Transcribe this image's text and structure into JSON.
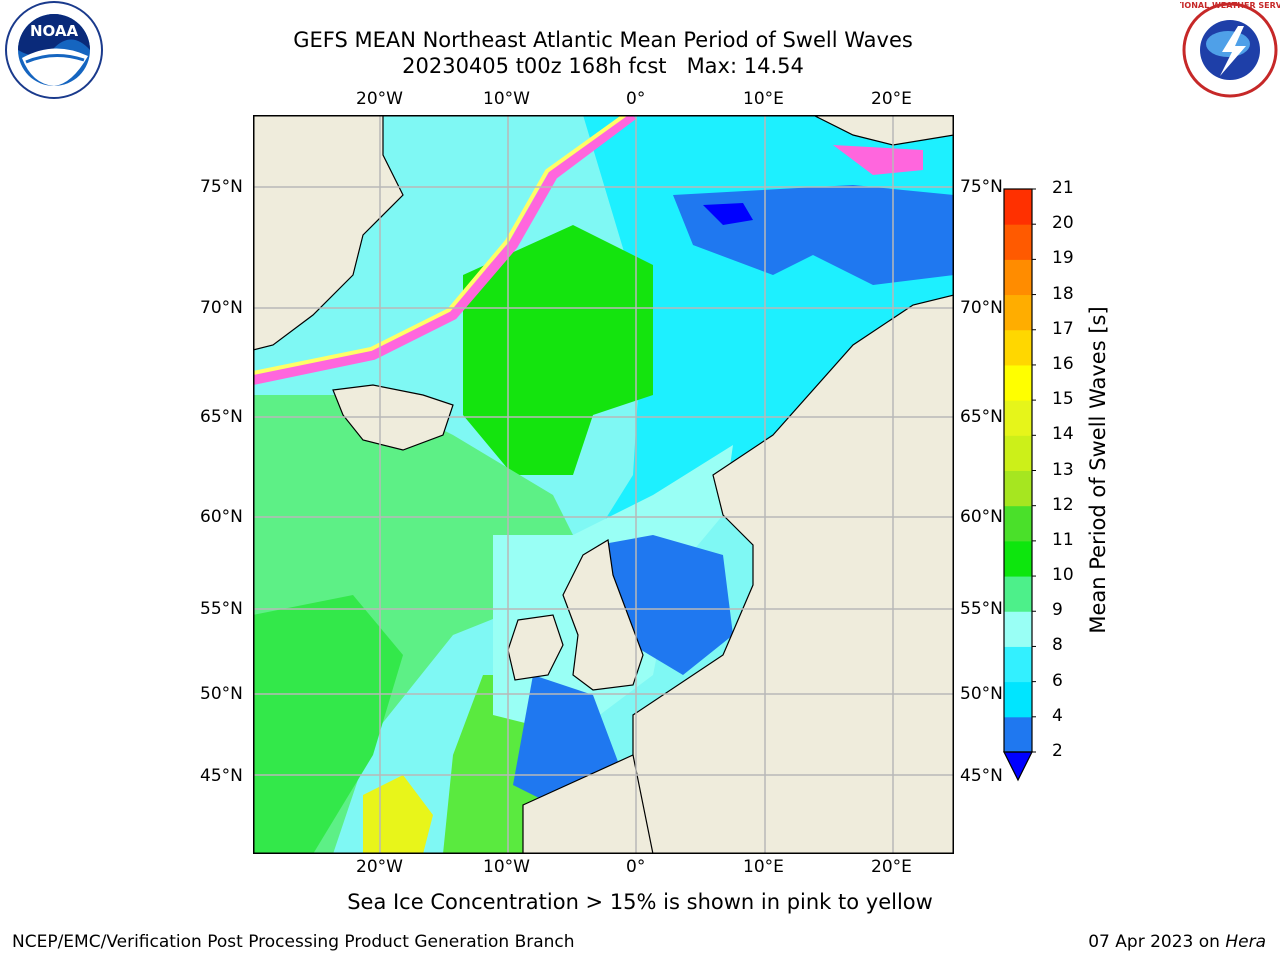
{
  "header": {
    "title_line1": "GEFS MEAN Northeast Atlantic Mean Period of Swell Waves",
    "title_line2": "20230405 t00z 168h fcst   Max: 14.54"
  },
  "logos": {
    "left": {
      "name": "noaa-logo",
      "text": "NOAA"
    },
    "right": {
      "name": "nws-logo",
      "text": "NATIONAL WEATHER SERVICE"
    }
  },
  "map": {
    "lon_labels": [
      "20°W",
      "10°W",
      "0°",
      "10°E",
      "20°E"
    ],
    "lat_labels": [
      "75°N",
      "70°N",
      "65°N",
      "60°N",
      "55°N",
      "50°N",
      "45°N"
    ]
  },
  "colorbar": {
    "title": "Mean Period of Swell Waves [s]",
    "ticks": [
      "2",
      "4",
      "6",
      "8",
      "9",
      "10",
      "11",
      "12",
      "13",
      "14",
      "15",
      "16",
      "17",
      "18",
      "19",
      "20",
      "21"
    ],
    "colors": [
      "#1f78f0",
      "#00e5ff",
      "#33f0ff",
      "#99fff5",
      "#4df08a",
      "#0de60d",
      "#4ae02a",
      "#a6e620",
      "#ccf019",
      "#e6f51a",
      "#ffff00",
      "#ffd700",
      "#ffad00",
      "#ff8c00",
      "#ff5a00",
      "#ff3000",
      "#ff0000"
    ],
    "underflow_color": "#0000ff"
  },
  "colors": {
    "land": "#efecdc",
    "sea_ice_pink": "#ff66dd",
    "sea_ice_yellow": "#ffff66",
    "grid": "#b8b8b8"
  },
  "footer": {
    "note": "Sea Ice Concentration > 15% is shown in pink to yellow",
    "credit": "NCEP/EMC/Verification Post Processing Product Generation Branch",
    "date": "07 Apr 2023 on ",
    "machine": "Hera"
  }
}
